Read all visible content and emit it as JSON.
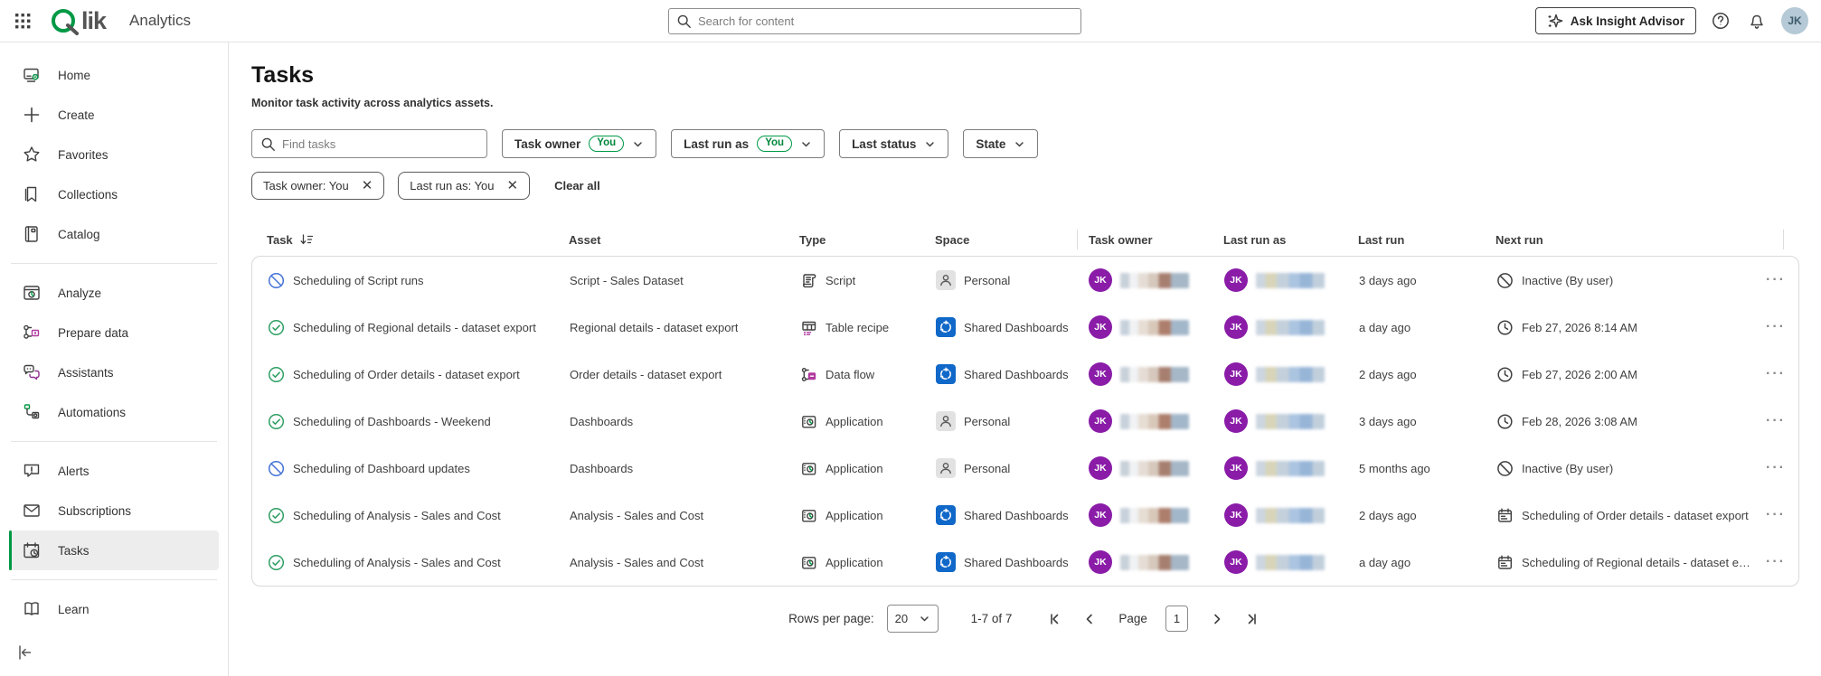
{
  "topbar": {
    "logo_text": "Qlik",
    "product": "Analytics",
    "search_placeholder": "Search for content",
    "ask_label": "Ask Insight Advisor",
    "avatar_initials": "JK"
  },
  "sidebar": {
    "sections": [
      {
        "items": [
          {
            "id": "home",
            "label": "Home",
            "icon": "home"
          },
          {
            "id": "create",
            "label": "Create",
            "icon": "plus"
          },
          {
            "id": "favorites",
            "label": "Favorites",
            "icon": "star"
          },
          {
            "id": "collections",
            "label": "Collections",
            "icon": "bookmark"
          },
          {
            "id": "catalog",
            "label": "Catalog",
            "icon": "catalog"
          }
        ]
      },
      {
        "items": [
          {
            "id": "analyze",
            "label": "Analyze",
            "icon": "analyze"
          },
          {
            "id": "prepare-data",
            "label": "Prepare data",
            "icon": "prepare"
          },
          {
            "id": "assistants",
            "label": "Assistants",
            "icon": "assistants"
          },
          {
            "id": "automations",
            "label": "Automations",
            "icon": "automations"
          }
        ]
      },
      {
        "items": [
          {
            "id": "alerts",
            "label": "Alerts",
            "icon": "alerts"
          },
          {
            "id": "subscriptions",
            "label": "Subscriptions",
            "icon": "envelope"
          },
          {
            "id": "tasks",
            "label": "Tasks",
            "icon": "tasks",
            "active": true
          }
        ]
      },
      {
        "items": [
          {
            "id": "learn",
            "label": "Learn",
            "icon": "learn"
          }
        ]
      }
    ]
  },
  "page": {
    "title": "Tasks",
    "subtitle": "Monitor task activity across analytics assets.",
    "find_placeholder": "Find tasks",
    "filters": [
      {
        "label": "Task owner",
        "badge": "You"
      },
      {
        "label": "Last run as",
        "badge": "You"
      },
      {
        "label": "Last status"
      },
      {
        "label": "State"
      }
    ],
    "chips": [
      {
        "label": "Task owner: You"
      },
      {
        "label": "Last run as: You"
      }
    ],
    "clear_all": "Clear all"
  },
  "table": {
    "columns": [
      "Task",
      "Asset",
      "Type",
      "Space",
      "Task owner",
      "Last run as",
      "Last run",
      "Next run"
    ],
    "rows": [
      {
        "status": "inactive",
        "task": "Scheduling of Script runs",
        "asset": "Script - Sales Dataset",
        "type": "Script",
        "type_icon": "script",
        "space": "Personal",
        "space_kind": "personal",
        "owner_initials": "JK",
        "runas_initials": "JK",
        "last_run": "3 days ago",
        "next_run": "Inactive (By user)",
        "next_run_icon": "inactive-dark"
      },
      {
        "status": "ok",
        "task": "Scheduling of Regional details - dataset export",
        "asset": "Regional details - dataset export",
        "type": "Table recipe",
        "type_icon": "table-recipe",
        "space": "Shared Dashboards",
        "space_kind": "shared",
        "owner_initials": "JK",
        "runas_initials": "JK",
        "last_run": "a day ago",
        "next_run": "Feb 27, 2026 8:14 AM",
        "next_run_icon": "clock"
      },
      {
        "status": "ok",
        "task": "Scheduling of Order details - dataset export",
        "asset": "Order details - dataset export",
        "type": "Data flow",
        "type_icon": "data-flow",
        "space": "Shared Dashboards",
        "space_kind": "shared",
        "owner_initials": "JK",
        "runas_initials": "JK",
        "last_run": "2 days ago",
        "next_run": "Feb 27, 2026 2:00 AM",
        "next_run_icon": "clock"
      },
      {
        "status": "ok",
        "task": "Scheduling of Dashboards - Weekend",
        "asset": "Dashboards",
        "type": "Application",
        "type_icon": "application",
        "space": "Personal",
        "space_kind": "personal",
        "owner_initials": "JK",
        "runas_initials": "JK",
        "last_run": "3 days ago",
        "next_run": "Feb 28, 2026 3:08 AM",
        "next_run_icon": "clock"
      },
      {
        "status": "inactive",
        "task": "Scheduling of Dashboard updates",
        "asset": "Dashboards",
        "type": "Application",
        "type_icon": "application",
        "space": "Personal",
        "space_kind": "personal",
        "owner_initials": "JK",
        "runas_initials": "JK",
        "last_run": "5 months ago",
        "next_run": "Inactive (By user)",
        "next_run_icon": "inactive-dark"
      },
      {
        "status": "ok",
        "task": "Scheduling of Analysis - Sales and Cost",
        "asset": "Analysis - Sales and Cost",
        "type": "Application",
        "type_icon": "application",
        "space": "Shared Dashboards",
        "space_kind": "shared",
        "owner_initials": "JK",
        "runas_initials": "JK",
        "last_run": "2 days ago",
        "next_run": "Scheduling of Order details - dataset export",
        "next_run_icon": "calendar"
      },
      {
        "status": "ok",
        "task": "Scheduling of Analysis - Sales and Cost",
        "asset": "Analysis - Sales and Cost",
        "type": "Application",
        "type_icon": "application",
        "space": "Shared Dashboards",
        "space_kind": "shared",
        "owner_initials": "JK",
        "runas_initials": "JK",
        "last_run": "a day ago",
        "next_run": "Scheduling of Regional details - dataset e…",
        "next_run_icon": "calendar"
      }
    ]
  },
  "pagination": {
    "rows_per_page_label": "Rows per page:",
    "rows_per_page_value": "20",
    "range": "1-7 of 7",
    "page_label": "Page",
    "page_value": "1"
  },
  "colors": {
    "brand_green": "#009845",
    "status_ok": "#2e9e62",
    "status_inactive": "#4272d7",
    "avatar_purple": "#8a1ca8",
    "space_blue": "#1068c9"
  }
}
